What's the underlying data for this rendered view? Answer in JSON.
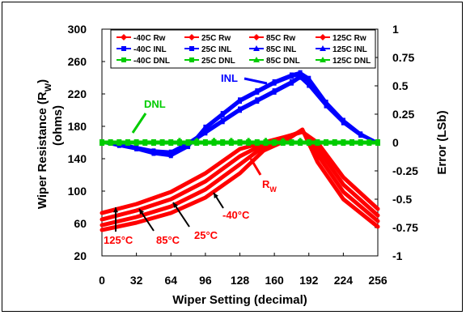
{
  "chart_data": {
    "type": "line",
    "xlabel": "Wiper Setting (decimal)",
    "ylabel": "Wiper Resistance (R",
    "ylabel_sub": "W",
    "ylabel_close": ")",
    "ylabel_units": "(ohms)",
    "y2label": "Error (LSb)",
    "xlim": [
      0,
      256
    ],
    "ylim": [
      20,
      300
    ],
    "y2lim": [
      -1,
      1
    ],
    "x_ticks": [
      0,
      32,
      64,
      96,
      128,
      160,
      192,
      224,
      256
    ],
    "y_ticks": [
      20,
      60,
      100,
      140,
      180,
      220,
      260,
      300
    ],
    "y2_ticks": [
      "1",
      "0.75",
      "0.5",
      "0.25",
      "0",
      "-0.25",
      "-0.5",
      "-0.75",
      "-1"
    ],
    "y2_tick_values": [
      1,
      0.75,
      0.5,
      0.25,
      0,
      -0.25,
      -0.5,
      -0.75,
      -1
    ],
    "legend": [
      {
        "label": "-40C Rw",
        "color": "#ff0000",
        "marker": "diamond"
      },
      {
        "label": "25C Rw",
        "color": "#ff0000",
        "marker": "diamond"
      },
      {
        "label": "85C Rw",
        "color": "#ff0000",
        "marker": "diamond"
      },
      {
        "label": "125C Rw",
        "color": "#ff0000",
        "marker": "diamond"
      },
      {
        "label": "-40C INL",
        "color": "#0000ff",
        "marker": "square"
      },
      {
        "label": "25C INL",
        "color": "#0000ff",
        "marker": "square"
      },
      {
        "label": "85C INL",
        "color": "#0000ff",
        "marker": "triangle"
      },
      {
        "label": "125C INL",
        "color": "#0000ff",
        "marker": "triangle"
      },
      {
        "label": "-40C DNL",
        "color": "#00cc00",
        "marker": "square"
      },
      {
        "label": "25C DNL",
        "color": "#00cc00",
        "marker": "square"
      },
      {
        "label": "85C DNL",
        "color": "#00cc00",
        "marker": "triangle"
      },
      {
        "label": "125C DNL",
        "color": "#00cc00",
        "marker": "triangle"
      }
    ],
    "annotations": {
      "inl": "INL",
      "dnl": "DNL",
      "rw": "R",
      "rw_sub": "W",
      "t_125": "125°C",
      "t_85": "85°C",
      "t_25": "25°C",
      "t_m40": "-40°C"
    },
    "colors": {
      "rw": "#ff0000",
      "inl": "#0000ff",
      "dnl": "#00cc00"
    },
    "series": [
      {
        "group": "rw",
        "axis": "left",
        "x": [
          0,
          32,
          64,
          96,
          128,
          150,
          170,
          186,
          200,
          224,
          256
        ],
        "y": [
          52,
          61,
          73,
          92,
          122,
          150,
          162,
          176,
          136,
          90,
          56
        ]
      },
      {
        "group": "rw",
        "axis": "left",
        "x": [
          0,
          32,
          64,
          96,
          128,
          150,
          170,
          186,
          200,
          224,
          256
        ],
        "y": [
          58,
          68,
          81,
          102,
          133,
          155,
          164,
          175,
          145,
          99,
          63
        ]
      },
      {
        "group": "rw",
        "axis": "left",
        "x": [
          0,
          32,
          64,
          96,
          128,
          150,
          170,
          186,
          200,
          224,
          256
        ],
        "y": [
          65,
          76,
          90,
          112,
          143,
          158,
          166,
          174,
          153,
          108,
          70
        ]
      },
      {
        "group": "rw",
        "axis": "left",
        "x": [
          0,
          32,
          64,
          96,
          128,
          150,
          170,
          186,
          200,
          224,
          256
        ],
        "y": [
          73,
          84,
          99,
          122,
          152,
          160,
          167,
          173,
          160,
          117,
          78
        ]
      },
      {
        "group": "inl",
        "axis": "right",
        "x": [
          0,
          16,
          32,
          48,
          64,
          80,
          96,
          112,
          128,
          144,
          160,
          176,
          184,
          192,
          208,
          224,
          240,
          256
        ],
        "y": [
          0,
          -0.02,
          -0.05,
          -0.08,
          -0.1,
          -0.02,
          0.08,
          0.18,
          0.28,
          0.36,
          0.44,
          0.52,
          0.57,
          0.5,
          0.32,
          0.17,
          0.06,
          0
        ]
      },
      {
        "group": "inl",
        "axis": "right",
        "x": [
          0,
          16,
          32,
          48,
          64,
          80,
          96,
          112,
          128,
          144,
          160,
          176,
          184,
          192,
          208,
          224,
          240,
          256
        ],
        "y": [
          0,
          -0.01,
          -0.04,
          -0.07,
          -0.08,
          0.0,
          0.1,
          0.2,
          0.3,
          0.38,
          0.46,
          0.54,
          0.59,
          0.53,
          0.34,
          0.18,
          0.07,
          0
        ]
      },
      {
        "group": "inl",
        "axis": "right",
        "x": [
          0,
          16,
          32,
          48,
          64,
          80,
          96,
          112,
          128,
          144,
          160,
          176,
          184,
          192,
          208,
          224,
          240,
          256
        ],
        "y": [
          0,
          -0.02,
          -0.05,
          -0.09,
          -0.11,
          -0.03,
          0.12,
          0.24,
          0.36,
          0.44,
          0.52,
          0.58,
          0.6,
          0.55,
          0.35,
          0.19,
          0.07,
          0
        ]
      },
      {
        "group": "inl",
        "axis": "right",
        "x": [
          0,
          16,
          32,
          48,
          64,
          80,
          96,
          112,
          128,
          144,
          160,
          176,
          184,
          192,
          208,
          224,
          240,
          256
        ],
        "y": [
          0,
          -0.03,
          -0.06,
          -0.1,
          -0.12,
          -0.04,
          0.14,
          0.26,
          0.38,
          0.46,
          0.54,
          0.6,
          0.62,
          0.57,
          0.36,
          0.2,
          0.08,
          0
        ]
      },
      {
        "group": "dnl",
        "axis": "right",
        "x": [
          0,
          256
        ],
        "y": [
          0,
          0
        ]
      }
    ]
  }
}
